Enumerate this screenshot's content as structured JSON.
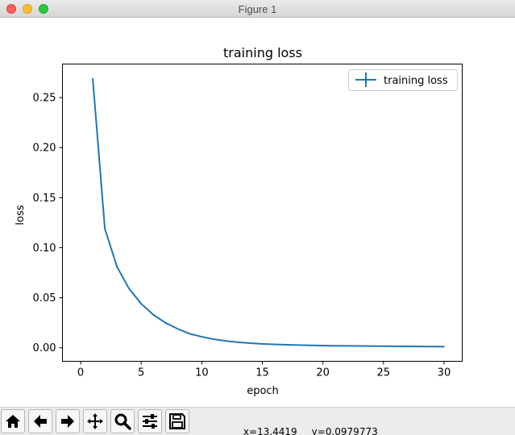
{
  "window": {
    "title": "Figure 1"
  },
  "toolbar": {
    "buttons": [
      {
        "name": "home-button",
        "icon": "home-icon"
      },
      {
        "name": "back-button",
        "icon": "arrow-left-icon"
      },
      {
        "name": "forward-button",
        "icon": "arrow-right-icon"
      },
      {
        "name": "pan-button",
        "icon": "move-icon"
      },
      {
        "name": "zoom-button",
        "icon": "magnifier-icon"
      },
      {
        "name": "configure-subplots-button",
        "icon": "sliders-icon"
      },
      {
        "name": "save-button",
        "icon": "floppy-icon"
      }
    ],
    "x_readout": "x=13.4419",
    "y_readout": "y=0.0979773"
  },
  "chart_data": {
    "type": "line",
    "title": "training loss",
    "xlabel": "epoch",
    "ylabel": "loss",
    "xlim": [
      -1.5,
      31.5
    ],
    "ylim": [
      -0.0135,
      0.2835
    ],
    "xticks": [
      0,
      5,
      10,
      15,
      20,
      25,
      30
    ],
    "xtick_labels": [
      "0",
      "5",
      "10",
      "15",
      "20",
      "25",
      "30"
    ],
    "yticks": [
      0.0,
      0.05,
      0.1,
      0.15,
      0.2,
      0.25
    ],
    "ytick_labels": [
      "0.00",
      "0.05",
      "0.10",
      "0.15",
      "0.20",
      "0.25"
    ],
    "legend": {
      "placement": "top-right",
      "entries": [
        "training loss"
      ]
    },
    "grid": false,
    "series": [
      {
        "name": "training loss",
        "color": "#1f77b4",
        "x": [
          1,
          2,
          3,
          4,
          5,
          6,
          7,
          8,
          9,
          10,
          11,
          12,
          13,
          14,
          15,
          16,
          17,
          18,
          19,
          20,
          21,
          22,
          23,
          24,
          25,
          26,
          27,
          28,
          29,
          30
        ],
        "y": [
          0.269,
          0.119,
          0.081,
          0.059,
          0.044,
          0.033,
          0.025,
          0.019,
          0.014,
          0.011,
          0.0085,
          0.0068,
          0.0055,
          0.0046,
          0.0039,
          0.0034,
          0.003,
          0.0027,
          0.0024,
          0.0022,
          0.002,
          0.0019,
          0.0018,
          0.0017,
          0.0016,
          0.0015,
          0.0014,
          0.0013,
          0.0012,
          0.0012
        ]
      }
    ]
  }
}
